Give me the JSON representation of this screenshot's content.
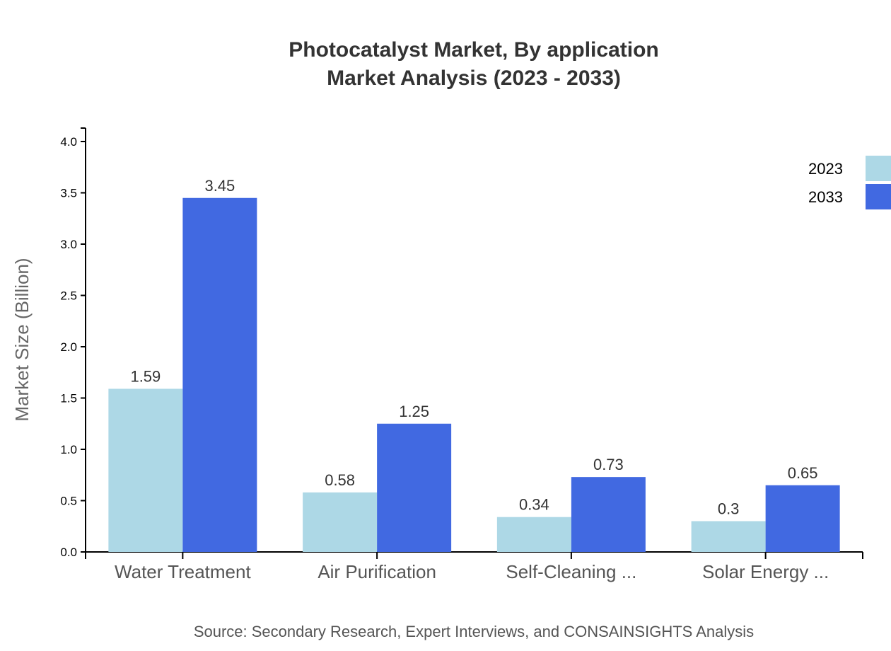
{
  "chart_data": {
    "type": "bar",
    "title": "Photocatalyst Market, By application",
    "subtitle": "Market Analysis (2023 - 2033)",
    "xlabel": "",
    "ylabel": "Market Size (Billion)",
    "ylim": [
      0,
      4.0
    ],
    "yticks": [
      "0.0",
      "0.5",
      "1.0",
      "1.5",
      "2.0",
      "2.5",
      "3.0",
      "3.5",
      "4.0"
    ],
    "categories": [
      "Water Treatment",
      "Air Purification",
      "Self-Cleaning ...",
      "Solar Energy ..."
    ],
    "series": [
      {
        "name": "2023",
        "color": "#add8e6",
        "values": [
          1.59,
          0.58,
          0.34,
          0.3
        ]
      },
      {
        "name": "2033",
        "color": "#4169e1",
        "values": [
          3.45,
          1.25,
          0.73,
          0.65
        ]
      }
    ],
    "grid": false,
    "legend": "top-right"
  },
  "source": "Source: Secondary Research, Expert Interviews, and CONSAINSIGHTS Analysis"
}
